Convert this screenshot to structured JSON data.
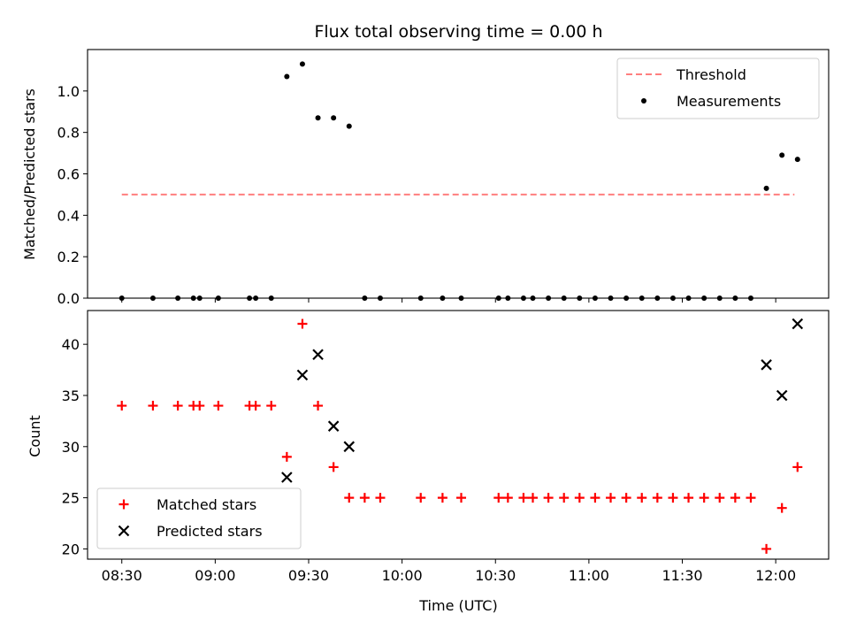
{
  "chart_data": [
    {
      "type": "scatter",
      "title": "Flux total observing time = 0.00 h",
      "ylabel": "Matched/Predicted stars",
      "xlabel": "",
      "x_unit": "Time (UTC)",
      "ylim": [
        0,
        1.2
      ],
      "xlim": [
        "08:19",
        "12:17"
      ],
      "yticks": [
        "0.0",
        "0.2",
        "0.4",
        "0.6",
        "0.8",
        "1.0"
      ],
      "legend_position": "top-right",
      "threshold": {
        "name": "Threshold",
        "value": 0.5,
        "x_start": "08:30",
        "x_end": "12:06",
        "color": "#ff7f7f",
        "style": "dashed"
      },
      "series": [
        {
          "name": "Measurements",
          "color": "#000000",
          "marker": "dot",
          "points": [
            [
              "08:30",
              0.0
            ],
            [
              "08:40",
              0.0
            ],
            [
              "08:48",
              0.0
            ],
            [
              "08:53",
              0.0
            ],
            [
              "08:55",
              0.0
            ],
            [
              "09:01",
              0.0
            ],
            [
              "09:11",
              0.0
            ],
            [
              "09:13",
              0.0
            ],
            [
              "09:18",
              0.0
            ],
            [
              "09:23",
              1.07
            ],
            [
              "09:28",
              1.13
            ],
            [
              "09:33",
              0.87
            ],
            [
              "09:38",
              0.87
            ],
            [
              "09:43",
              0.83
            ],
            [
              "09:48",
              0.0
            ],
            [
              "09:53",
              0.0
            ],
            [
              "10:06",
              0.0
            ],
            [
              "10:13",
              0.0
            ],
            [
              "10:19",
              0.0
            ],
            [
              "10:31",
              0.0
            ],
            [
              "10:34",
              0.0
            ],
            [
              "10:39",
              0.0
            ],
            [
              "10:42",
              0.0
            ],
            [
              "10:47",
              0.0
            ],
            [
              "10:52",
              0.0
            ],
            [
              "10:57",
              0.0
            ],
            [
              "11:02",
              0.0
            ],
            [
              "11:07",
              0.0
            ],
            [
              "11:12",
              0.0
            ],
            [
              "11:17",
              0.0
            ],
            [
              "11:22",
              0.0
            ],
            [
              "11:27",
              0.0
            ],
            [
              "11:32",
              0.0
            ],
            [
              "11:37",
              0.0
            ],
            [
              "11:42",
              0.0
            ],
            [
              "11:47",
              0.0
            ],
            [
              "11:52",
              0.0
            ],
            [
              "11:57",
              0.53
            ],
            [
              "12:02",
              0.69
            ],
            [
              "12:07",
              0.67
            ]
          ]
        }
      ]
    },
    {
      "type": "scatter",
      "title": "",
      "ylabel": "Count",
      "xlabel": "Time (UTC)",
      "ylim": [
        19,
        43.3
      ],
      "xlim": [
        "08:19",
        "12:17"
      ],
      "yticks": [
        "20",
        "25",
        "30",
        "35",
        "40"
      ],
      "xticks": [
        "08:30",
        "09:00",
        "09:30",
        "10:00",
        "10:30",
        "11:00",
        "11:30",
        "12:00"
      ],
      "legend_position": "bottom-left",
      "series": [
        {
          "name": "Matched stars",
          "color": "#ff0000",
          "marker": "plus",
          "points": [
            [
              "08:30",
              34
            ],
            [
              "08:40",
              34
            ],
            [
              "08:48",
              34
            ],
            [
              "08:53",
              34
            ],
            [
              "08:55",
              34
            ],
            [
              "09:01",
              34
            ],
            [
              "09:11",
              34
            ],
            [
              "09:13",
              34
            ],
            [
              "09:18",
              34
            ],
            [
              "09:23",
              29
            ],
            [
              "09:28",
              42
            ],
            [
              "09:33",
              34
            ],
            [
              "09:38",
              28
            ],
            [
              "09:43",
              25
            ],
            [
              "09:48",
              25
            ],
            [
              "09:53",
              25
            ],
            [
              "10:06",
              25
            ],
            [
              "10:13",
              25
            ],
            [
              "10:19",
              25
            ],
            [
              "10:31",
              25
            ],
            [
              "10:34",
              25
            ],
            [
              "10:39",
              25
            ],
            [
              "10:42",
              25
            ],
            [
              "10:47",
              25
            ],
            [
              "10:52",
              25
            ],
            [
              "10:57",
              25
            ],
            [
              "11:02",
              25
            ],
            [
              "11:07",
              25
            ],
            [
              "11:12",
              25
            ],
            [
              "11:17",
              25
            ],
            [
              "11:22",
              25
            ],
            [
              "11:27",
              25
            ],
            [
              "11:32",
              25
            ],
            [
              "11:37",
              25
            ],
            [
              "11:42",
              25
            ],
            [
              "11:47",
              25
            ],
            [
              "11:52",
              25
            ],
            [
              "11:57",
              20
            ],
            [
              "12:02",
              24
            ],
            [
              "12:07",
              28
            ]
          ]
        },
        {
          "name": "Predicted stars",
          "color": "#000000",
          "marker": "x",
          "points": [
            [
              "09:23",
              27
            ],
            [
              "09:28",
              37
            ],
            [
              "09:33",
              39
            ],
            [
              "09:38",
              32
            ],
            [
              "09:43",
              30
            ],
            [
              "11:57",
              38
            ],
            [
              "12:02",
              35
            ],
            [
              "12:07",
              42
            ]
          ]
        }
      ]
    }
  ]
}
